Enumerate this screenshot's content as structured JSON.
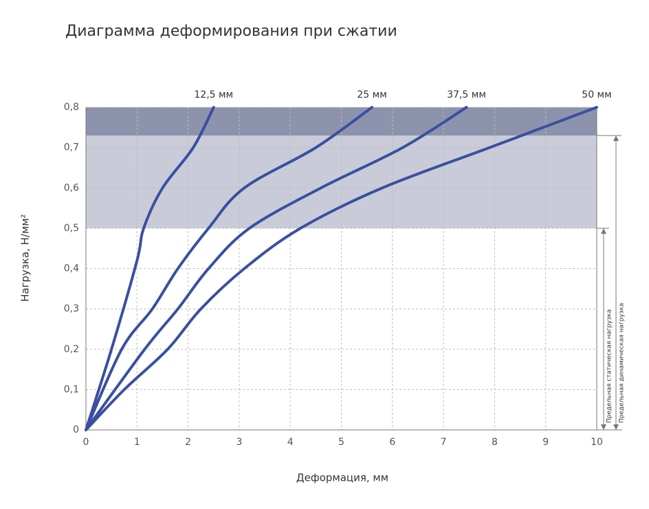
{
  "chart_data": {
    "type": "line",
    "title": "Диаграмма деформирования при сжатии",
    "x_label": "Деформация, мм",
    "y_label": "Нагрузка, Н/мм²",
    "xlim": [
      0,
      10
    ],
    "ylim": [
      0,
      0.8
    ],
    "xticks": [
      0,
      1,
      2,
      3,
      4,
      5,
      6,
      7,
      8,
      9,
      10
    ],
    "yticks": [
      0,
      {
        "value": 0.1,
        "label": "0,1"
      },
      {
        "value": 0.2,
        "label": "0,2"
      },
      {
        "value": 0.3,
        "label": "0,3"
      },
      {
        "value": 0.4,
        "label": "0,4"
      },
      {
        "value": 0.5,
        "label": "0,5"
      },
      {
        "value": 0.6,
        "label": "0,6"
      },
      {
        "value": 0.7,
        "label": "0,7"
      },
      {
        "value": 0.8,
        "label": "0,8"
      }
    ],
    "grid": true,
    "bands": [
      {
        "from": 0.5,
        "to": 0.73,
        "color": "#c9ccd8"
      },
      {
        "from": 0.73,
        "to": 0.8,
        "color": "#8e93ad"
      }
    ],
    "load_limits": [
      {
        "label": "Предельная статическая нагрузка",
        "value": 0.5
      },
      {
        "label": "Предельная динамическая нагрузка",
        "value": 0.73
      }
    ],
    "series": [
      {
        "name": "12,5 мм",
        "color": "#3a4fa0",
        "x": [
          0,
          0.5,
          1,
          1.13,
          1.5,
          2.1,
          2.5
        ],
        "values": [
          0,
          0.2,
          0.42,
          0.5,
          0.6,
          0.7,
          0.8
        ]
      },
      {
        "name": "25 мм",
        "color": "#3a4fa0",
        "x": [
          0,
          0.7,
          1.3,
          1.8,
          2.4,
          3.1,
          4.5,
          5.6
        ],
        "values": [
          0,
          0.2,
          0.3,
          0.4,
          0.5,
          0.6,
          0.7,
          0.8
        ]
      },
      {
        "name": "37,5 мм",
        "color": "#3a4fa0",
        "x": [
          0,
          1.15,
          1.8,
          2.4,
          3.2,
          4.6,
          6.2,
          7.45
        ],
        "values": [
          0,
          0.2,
          0.3,
          0.4,
          0.5,
          0.6,
          0.7,
          0.8
        ]
      },
      {
        "name": "50 мм",
        "color": "#3a4fa0",
        "x": [
          0,
          0.75,
          1.6,
          2.25,
          3.1,
          4.2,
          5.8,
          7.9,
          10
        ],
        "values": [
          0,
          0.1,
          0.2,
          0.3,
          0.4,
          0.5,
          0.6,
          0.7,
          0.8
        ]
      }
    ]
  }
}
